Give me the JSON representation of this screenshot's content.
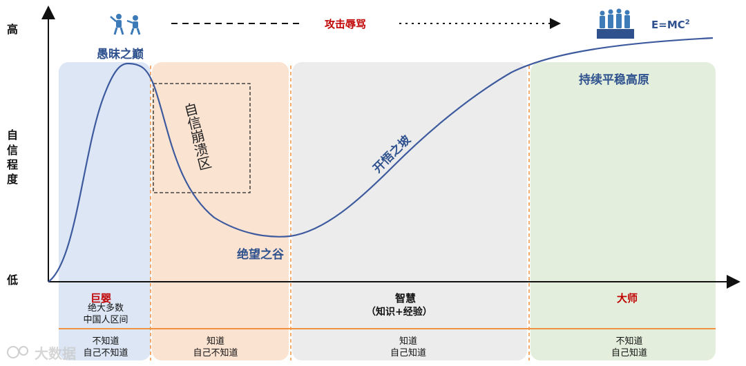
{
  "y_axis": {
    "high": "高",
    "label_chars": [
      "自",
      "信",
      "程",
      "度"
    ],
    "low": "低"
  },
  "top_banner": {
    "attack_text": "攻击辱骂",
    "formula_base": "E=MC",
    "formula_sup": "2"
  },
  "curve_labels": {
    "peak": "愚昧之巅",
    "collapse": "自信崩溃区",
    "valley": "绝望之谷",
    "slope": "开悟之坡",
    "plateau": "持续平稳高原"
  },
  "stages": [
    {
      "title": "巨婴",
      "subtitle_lines": [
        "绝大多数",
        "中国人区间"
      ],
      "knowledge_lines": [
        "不知道",
        "自己不知道"
      ]
    },
    {
      "title": "",
      "subtitle_lines": [],
      "knowledge_lines": [
        "知道",
        "自己不知道"
      ]
    },
    {
      "title": "智慧",
      "subtitle_lines": [
        "（知识+经验）"
      ],
      "knowledge_lines": [
        "知道",
        "自己知道"
      ]
    },
    {
      "title": "大师",
      "subtitle_lines": [],
      "knowledge_lines": [
        "不知道",
        "自己知道"
      ]
    }
  ],
  "watermark": "大数据",
  "colors": {
    "curve": "#3d5a9e",
    "zone1": "#dce6f5",
    "zone2": "#fbe3d2",
    "zone3": "#ececec",
    "zone4": "#e3efdc",
    "divider": "#f0913f",
    "accent_red": "#c00000",
    "label_blue": "#2f528f"
  }
}
